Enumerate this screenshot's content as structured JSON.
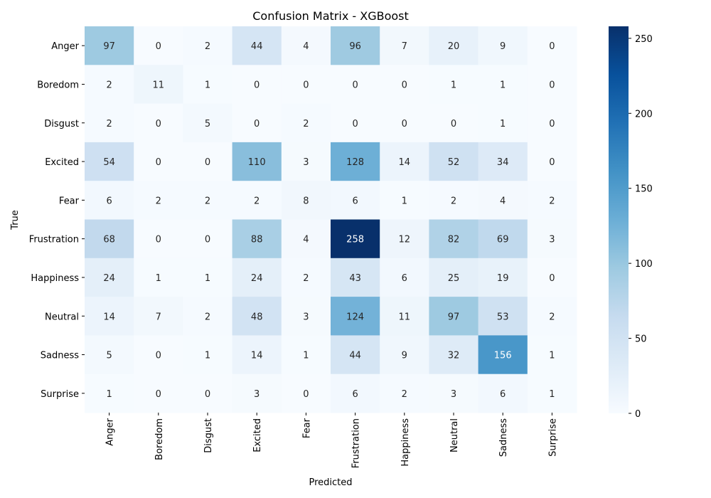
{
  "chart_data": {
    "type": "heatmap",
    "title": "Confusion Matrix - XGBoost",
    "xlabel": "Predicted",
    "ylabel": "True",
    "x_categories": [
      "Anger",
      "Boredom",
      "Disgust",
      "Excited",
      "Fear",
      "Frustration",
      "Happiness",
      "Neutral",
      "Sadness",
      "Surprise"
    ],
    "y_categories": [
      "Anger",
      "Boredom",
      "Disgust",
      "Excited",
      "Fear",
      "Frustration",
      "Happiness",
      "Neutral",
      "Sadness",
      "Surprise"
    ],
    "values": [
      [
        97,
        0,
        2,
        44,
        4,
        96,
        7,
        20,
        9,
        0
      ],
      [
        2,
        11,
        1,
        0,
        0,
        0,
        0,
        1,
        1,
        0
      ],
      [
        2,
        0,
        5,
        0,
        2,
        0,
        0,
        0,
        1,
        0
      ],
      [
        54,
        0,
        0,
        110,
        3,
        128,
        14,
        52,
        34,
        0
      ],
      [
        6,
        2,
        2,
        2,
        8,
        6,
        1,
        2,
        4,
        2
      ],
      [
        68,
        0,
        0,
        88,
        4,
        258,
        12,
        82,
        69,
        3
      ],
      [
        24,
        1,
        1,
        24,
        2,
        43,
        6,
        25,
        19,
        0
      ],
      [
        14,
        7,
        2,
        48,
        3,
        124,
        11,
        97,
        53,
        2
      ],
      [
        5,
        0,
        1,
        14,
        1,
        44,
        9,
        32,
        156,
        1
      ],
      [
        1,
        0,
        0,
        3,
        0,
        6,
        2,
        3,
        6,
        1
      ]
    ],
    "colorbar": {
      "min": 0,
      "max": 258,
      "ticks": [
        0,
        50,
        100,
        150,
        200,
        250
      ],
      "colormap": "Blues"
    },
    "grid": false
  }
}
